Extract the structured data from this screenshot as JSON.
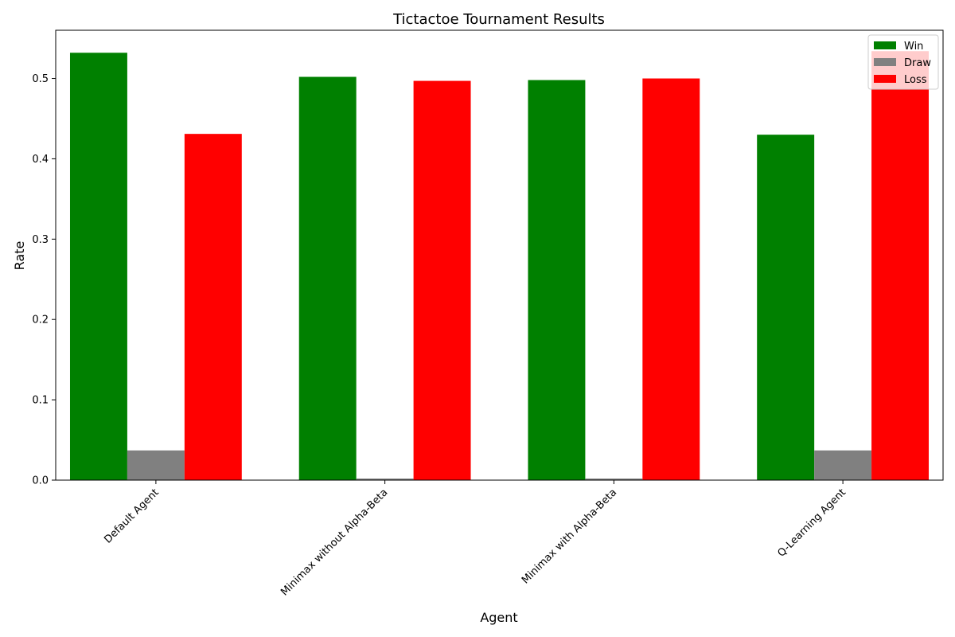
{
  "chart_data": {
    "type": "bar",
    "title": "Tictactoe Tournament Results",
    "xlabel": "Agent",
    "ylabel": "Rate",
    "ylim": [
      0,
      0.56
    ],
    "yticks": [
      "0.0",
      "0.1",
      "0.2",
      "0.3",
      "0.4",
      "0.5"
    ],
    "categories": [
      "Default Agent",
      "Minimax without Alpha-Beta",
      "Minimax with Alpha-Beta",
      "Q-Learning Agent"
    ],
    "series": [
      {
        "name": "Win",
        "color": "#008000",
        "values": [
          0.532,
          0.502,
          0.498,
          0.43
        ]
      },
      {
        "name": "Draw",
        "color": "#808080",
        "values": [
          0.037,
          0.002,
          0.002,
          0.037
        ]
      },
      {
        "name": "Loss",
        "color": "#ff0000",
        "values": [
          0.431,
          0.497,
          0.5,
          0.534
        ]
      }
    ],
    "grid": false,
    "legend_position": "top-right"
  }
}
